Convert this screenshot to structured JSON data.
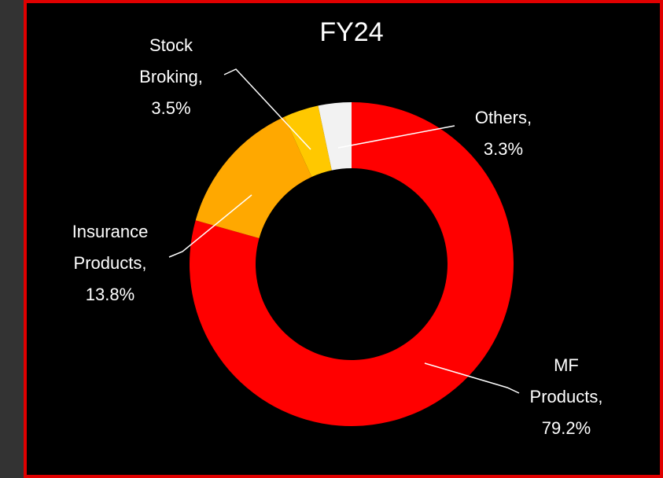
{
  "chart_data": {
    "type": "donut",
    "title": "FY24",
    "categories": [
      "MF Products,",
      "Insurance Products,",
      "Stock Broking,",
      "Others,"
    ],
    "values": [
      79.2,
      13.8,
      3.5,
      3.3
    ],
    "value_labels": [
      "79.2%",
      "13.8%",
      "3.5%",
      "3.3%"
    ],
    "colors": [
      "#ff0000",
      "#ffa800",
      "#ffc800",
      "#f2f2f2"
    ]
  }
}
